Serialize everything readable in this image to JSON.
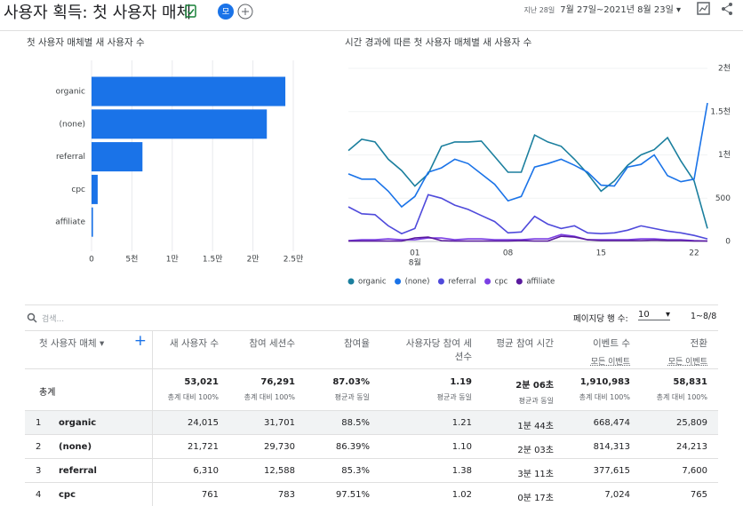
{
  "header": {
    "title": "사용자 획득: 첫 사용자 매체",
    "avatar": "모",
    "date_prefix": "지난 28일",
    "date_range": "7월 27일~2021년 8월 23일"
  },
  "bar_chart": {
    "type": "bar",
    "title": "첫 사용자 매체별 새 사용자 수",
    "categories": [
      "organic",
      "(none)",
      "referral",
      "cpc",
      "affiliate"
    ],
    "values": [
      24015,
      21721,
      6310,
      761,
      180
    ],
    "color": "#1a73e8",
    "xlim": [
      0,
      25000
    ],
    "xticks": [
      0,
      {
        "value": 5000,
        "label": "5천"
      },
      {
        "value": 10000,
        "label": "1만"
      },
      {
        "value": 15000,
        "label": "1.5만"
      },
      {
        "value": 20000,
        "label": "2만"
      },
      {
        "value": 25000,
        "label": "2.5만"
      }
    ],
    "grid": true
  },
  "line_chart": {
    "type": "line",
    "title": "시간 경과에 따른 첫 사용자 매체별 새 사용자 수",
    "categories": [
      null,
      null,
      null,
      null,
      null,
      "01",
      null,
      null,
      null,
      null,
      null,
      null,
      "08",
      null,
      null,
      null,
      null,
      null,
      null,
      "15",
      null,
      null,
      null,
      null,
      null,
      null,
      "22",
      null
    ],
    "month_label": "8월",
    "ylim": [
      0,
      2000
    ],
    "yticks": [
      0,
      500,
      {
        "value": 1000,
        "label": "1천"
      },
      {
        "value": 1500,
        "label": "1.5천"
      },
      {
        "value": 2000,
        "label": "2천"
      }
    ],
    "grid": true,
    "series": [
      {
        "name": "organic",
        "color": "#1b7f9e",
        "values": [
          1050,
          1180,
          1150,
          950,
          820,
          640,
          780,
          1100,
          1150,
          1150,
          1160,
          980,
          800,
          800,
          1230,
          1150,
          1100,
          950,
          780,
          580,
          700,
          880,
          1000,
          1060,
          1200,
          930,
          700,
          150
        ]
      },
      {
        "name": "(none)",
        "color": "#1a73e8",
        "values": [
          780,
          720,
          720,
          580,
          400,
          520,
          800,
          850,
          950,
          900,
          780,
          660,
          470,
          520,
          860,
          900,
          950,
          880,
          800,
          650,
          640,
          860,
          890,
          1000,
          760,
          690,
          720,
          1600
        ]
      },
      {
        "name": "referral",
        "color": "#4f4adb",
        "values": [
          400,
          320,
          310,
          180,
          90,
          150,
          540,
          500,
          420,
          370,
          300,
          230,
          100,
          110,
          290,
          200,
          150,
          180,
          100,
          90,
          100,
          130,
          180,
          150,
          120,
          100,
          70,
          30
        ]
      },
      {
        "name": "cpc",
        "color": "#7b3fe4",
        "values": [
          10,
          20,
          20,
          30,
          20,
          20,
          40,
          40,
          20,
          30,
          30,
          20,
          20,
          20,
          30,
          30,
          80,
          60,
          20,
          20,
          20,
          20,
          30,
          30,
          20,
          20,
          10,
          5
        ]
      },
      {
        "name": "affiliate",
        "color": "#5a1a9e",
        "values": [
          5,
          5,
          5,
          5,
          5,
          40,
          50,
          10,
          5,
          5,
          5,
          5,
          5,
          10,
          5,
          5,
          60,
          50,
          20,
          10,
          10,
          10,
          10,
          15,
          10,
          10,
          5,
          5
        ]
      }
    ]
  },
  "toolbar": {
    "search": "검색...",
    "rows_per_page_label": "페이지당 행 수:",
    "rows_per_page": "10",
    "pagination": "1~8/8"
  },
  "table": {
    "columns": [
      {
        "label": "첫 사용자 매체"
      },
      {
        "label": "새 사용자 수"
      },
      {
        "label": "참여 세션수"
      },
      {
        "label": "참여율"
      },
      {
        "label": "사용자당 참여 세션수"
      },
      {
        "label": "평균 참여 시간"
      },
      {
        "label": "이벤트 수",
        "sub": "모든 이벤트"
      },
      {
        "label": "전환",
        "sub": "모든 이벤트"
      }
    ],
    "total": {
      "label": "총계",
      "values": [
        "53,021",
        "76,291",
        "87.03%",
        "1.19",
        "2분 06초",
        "1,910,983",
        "58,831"
      ],
      "notes": [
        "총계 대비 100%",
        "총계 대비 100%",
        "평균과 동일",
        "평균과 동일",
        "평균과 동일",
        "총계 대비 100%",
        "총계 대비 100%"
      ]
    },
    "rows": [
      [
        "1",
        "organic",
        "24,015",
        "31,701",
        "88.5%",
        "1.21",
        "1분 44초",
        "668,474",
        "25,809"
      ],
      [
        "2",
        "(none)",
        "21,721",
        "29,730",
        "86.39%",
        "1.10",
        "2분 03초",
        "814,313",
        "24,213"
      ],
      [
        "3",
        "referral",
        "6,310",
        "12,588",
        "85.3%",
        "1.38",
        "3분 11초",
        "377,615",
        "7,600"
      ],
      [
        "4",
        "cpc",
        "761",
        "783",
        "97.51%",
        "1.02",
        "0분 17초",
        "7,024",
        "765"
      ]
    ]
  }
}
